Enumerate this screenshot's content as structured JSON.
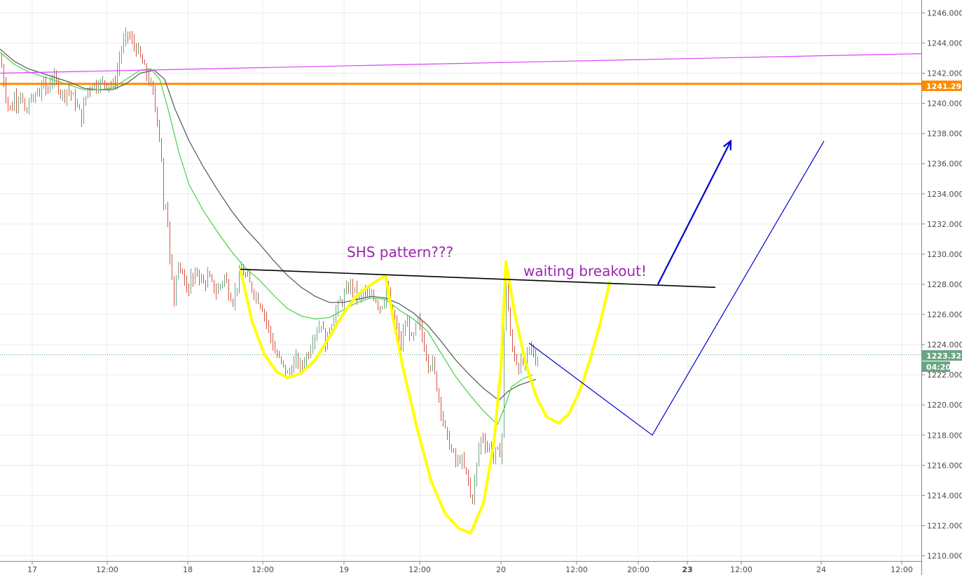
{
  "chart_data": {
    "type": "candlestick",
    "ylim": [
      1209.6,
      1247.0
    ],
    "y_ticks": [
      "1210.000",
      "1212.000",
      "1214.000",
      "1216.000",
      "1218.000",
      "1220.000",
      "1222.000",
      "1224.000",
      "1226.000",
      "1228.000",
      "1230.000",
      "1232.000",
      "1234.000",
      "1236.000",
      "1238.000",
      "1240.000",
      "1242.000",
      "1244.000",
      "1246.000"
    ],
    "x_ticks": [
      "17",
      "12:00",
      "18",
      "12:00",
      "19",
      "12:00",
      "20",
      "12:00",
      "20:00",
      "23",
      "12:00",
      "24",
      "12:00"
    ],
    "colors": {
      "up": "#6ba583",
      "down": "#d75442",
      "ema_fast": "#43d343",
      "ema_slow": "#555555",
      "resistance": "#ff8c00",
      "trendline": "#e040fb",
      "neckline": "#000000",
      "pattern": "#ffff00",
      "projection": "#0000cc",
      "annotation": "#9c27b0",
      "last_price": "#6ba583"
    },
    "levels": {
      "resistance_price": 1241.292,
      "resistance_label": "1241.292",
      "last_price": 1223.328,
      "last_price_label": "1223.328",
      "countdown_label": "04:20"
    },
    "annotations": [
      {
        "text": "SHS pattern???"
      },
      {
        "text": "waiting breakout!"
      }
    ],
    "price_path": [
      [
        0,
        1243.0
      ],
      [
        5,
        1241.5
      ],
      [
        10,
        1240.0
      ],
      [
        16,
        1239.5
      ],
      [
        20,
        1240.5
      ],
      [
        24,
        1240.0
      ],
      [
        28,
        1241.0
      ],
      [
        32,
        1240.0
      ],
      [
        36,
        1239.0
      ],
      [
        40,
        1239.8
      ],
      [
        44,
        1240.5
      ],
      [
        48,
        1240.0
      ],
      [
        52,
        1241.0
      ],
      [
        56,
        1240.5
      ],
      [
        60,
        1241.5
      ],
      [
        64,
        1241.0
      ],
      [
        68,
        1240.8
      ],
      [
        72,
        1241.8
      ],
      [
        78,
        1241.5
      ],
      [
        84,
        1241.0
      ],
      [
        90,
        1240.5
      ],
      [
        96,
        1241.0
      ],
      [
        102,
        1240.5
      ],
      [
        108,
        1240.0
      ],
      [
        112,
        1239.5
      ],
      [
        116,
        1239.0
      ],
      [
        120,
        1240.0
      ],
      [
        124,
        1241.0
      ],
      [
        128,
        1241.0
      ],
      [
        132,
        1241.5
      ],
      [
        136,
        1241.0
      ],
      [
        140,
        1241.5
      ],
      [
        144,
        1241.2
      ],
      [
        148,
        1241.5
      ],
      [
        152,
        1241.3
      ],
      [
        156,
        1241.5
      ],
      [
        160,
        1241.0
      ],
      [
        164,
        1241.5
      ],
      [
        168,
        1242.5
      ],
      [
        172,
        1243.5
      ],
      [
        176,
        1244.0
      ],
      [
        180,
        1244.5
      ],
      [
        184,
        1244.5
      ],
      [
        188,
        1244.0
      ],
      [
        192,
        1243.8
      ],
      [
        196,
        1243.5
      ],
      [
        200,
        1243.0
      ],
      [
        204,
        1242.5
      ],
      [
        208,
        1242.0
      ],
      [
        212,
        1241.5
      ],
      [
        216,
        1241.0
      ],
      [
        220,
        1240.0
      ],
      [
        224,
        1239.0
      ],
      [
        228,
        1237.5
      ],
      [
        232,
        1235.0
      ],
      [
        234,
        1231.0
      ],
      [
        236,
        1233.0
      ],
      [
        238,
        1231.5
      ],
      [
        240,
        1232.5
      ],
      [
        242,
        1230.0
      ],
      [
        244,
        1229.5
      ],
      [
        246,
        1228.0
      ],
      [
        248,
        1227.0
      ],
      [
        252,
        1229.0
      ],
      [
        256,
        1228.5
      ],
      [
        260,
        1229.0
      ],
      [
        264,
        1228.0
      ],
      [
        268,
        1227.5
      ],
      [
        272,
        1228.5
      ],
      [
        276,
        1228.0
      ],
      [
        280,
        1229.0
      ],
      [
        285,
        1228.5
      ],
      [
        290,
        1228.0
      ],
      [
        296,
        1228.5
      ],
      [
        302,
        1228.0
      ],
      [
        308,
        1227.5
      ],
      [
        314,
        1228.0
      ],
      [
        320,
        1228.5
      ],
      [
        326,
        1227.5
      ],
      [
        332,
        1227.0
      ],
      [
        338,
        1228.0
      ],
      [
        344,
        1229.0
      ],
      [
        350,
        1228.5
      ],
      [
        356,
        1228.0
      ],
      [
        362,
        1227.5
      ],
      [
        368,
        1227.0
      ],
      [
        374,
        1226.5
      ],
      [
        380,
        1225.5
      ],
      [
        386,
        1224.5
      ],
      [
        392,
        1223.5
      ],
      [
        398,
        1223.0
      ],
      [
        404,
        1222.5
      ],
      [
        410,
        1222.0
      ],
      [
        416,
        1222.5
      ],
      [
        422,
        1223.0
      ],
      [
        428,
        1222.5
      ],
      [
        434,
        1223.0
      ],
      [
        440,
        1223.5
      ],
      [
        446,
        1224.5
      ],
      [
        452,
        1225.0
      ],
      [
        458,
        1225.5
      ],
      [
        464,
        1224.0
      ],
      [
        470,
        1225.0
      ],
      [
        476,
        1226.0
      ],
      [
        482,
        1226.5
      ],
      [
        488,
        1227.0
      ],
      [
        494,
        1227.5
      ],
      [
        500,
        1228.0
      ],
      [
        506,
        1227.5
      ],
      [
        512,
        1227.0
      ],
      [
        518,
        1227.5
      ],
      [
        524,
        1227.0
      ],
      [
        530,
        1227.5
      ],
      [
        536,
        1227.0
      ],
      [
        542,
        1226.5
      ],
      [
        548,
        1227.0
      ],
      [
        552,
        1228.0
      ],
      [
        556,
        1226.5
      ],
      [
        560,
        1226.0
      ],
      [
        564,
        1225.5
      ],
      [
        568,
        1224.5
      ],
      [
        572,
        1224.0
      ],
      [
        576,
        1225.0
      ],
      [
        580,
        1225.5
      ],
      [
        584,
        1225.0
      ],
      [
        588,
        1224.0
      ],
      [
        592,
        1225.0
      ],
      [
        596,
        1225.5
      ],
      [
        600,
        1225.0
      ],
      [
        604,
        1224.0
      ],
      [
        608,
        1223.5
      ],
      [
        612,
        1222.5
      ],
      [
        616,
        1223.0
      ],
      [
        620,
        1222.0
      ],
      [
        624,
        1221.0
      ],
      [
        628,
        1220.0
      ],
      [
        632,
        1219.0
      ],
      [
        636,
        1218.0
      ],
      [
        640,
        1217.5
      ],
      [
        644,
        1217.0
      ],
      [
        648,
        1216.5
      ],
      [
        652,
        1216.0
      ],
      [
        656,
        1216.5
      ],
      [
        660,
        1216.0
      ],
      [
        664,
        1215.5
      ],
      [
        668,
        1215.0
      ],
      [
        672,
        1213.5
      ],
      [
        676,
        1214.5
      ],
      [
        680,
        1216.0
      ],
      [
        684,
        1217.5
      ],
      [
        688,
        1218.0
      ],
      [
        692,
        1217.5
      ],
      [
        696,
        1217.0
      ],
      [
        700,
        1217.5
      ],
      [
        704,
        1216.5
      ],
      [
        708,
        1217.0
      ],
      [
        712,
        1216.5
      ],
      [
        716,
        1218.0
      ],
      [
        718,
        1223.0
      ],
      [
        720,
        1227.0
      ],
      [
        722,
        1228.5
      ],
      [
        724,
        1227.0
      ],
      [
        726,
        1225.5
      ],
      [
        728,
        1224.5
      ],
      [
        732,
        1223.5
      ],
      [
        736,
        1223.0
      ],
      [
        740,
        1222.5
      ],
      [
        744,
        1223.0
      ],
      [
        748,
        1222.5
      ],
      [
        752,
        1223.5
      ],
      [
        756,
        1223.8
      ],
      [
        760,
        1223.5
      ],
      [
        764,
        1223.0
      ],
      [
        768,
        1223.3
      ]
    ],
    "ema_fast_path": [
      [
        0,
        1243.4
      ],
      [
        20,
        1242.6
      ],
      [
        40,
        1242.1
      ],
      [
        60,
        1241.8
      ],
      [
        80,
        1241.5
      ],
      [
        100,
        1241.2
      ],
      [
        120,
        1240.9
      ],
      [
        140,
        1240.9
      ],
      [
        160,
        1241.0
      ],
      [
        180,
        1241.6
      ],
      [
        200,
        1242.2
      ],
      [
        215,
        1242.3
      ],
      [
        228,
        1241.6
      ],
      [
        240,
        1239.6
      ],
      [
        255,
        1236.8
      ],
      [
        270,
        1234.6
      ],
      [
        290,
        1232.9
      ],
      [
        310,
        1231.5
      ],
      [
        330,
        1230.2
      ],
      [
        350,
        1229.1
      ],
      [
        370,
        1228.3
      ],
      [
        390,
        1227.3
      ],
      [
        410,
        1226.4
      ],
      [
        430,
        1225.9
      ],
      [
        450,
        1225.7
      ],
      [
        470,
        1225.8
      ],
      [
        490,
        1226.3
      ],
      [
        510,
        1226.8
      ],
      [
        530,
        1227.1
      ],
      [
        550,
        1227.0
      ],
      [
        570,
        1226.3
      ],
      [
        590,
        1225.7
      ],
      [
        610,
        1224.9
      ],
      [
        630,
        1223.4
      ],
      [
        650,
        1221.9
      ],
      [
        670,
        1220.7
      ],
      [
        690,
        1219.6
      ],
      [
        710,
        1218.7
      ],
      [
        720,
        1219.8
      ],
      [
        730,
        1221.2
      ],
      [
        745,
        1221.7
      ],
      [
        760,
        1222.0
      ]
    ],
    "ema_slow_path": [
      [
        0,
        1243.6
      ],
      [
        20,
        1242.8
      ],
      [
        40,
        1242.3
      ],
      [
        60,
        1242.0
      ],
      [
        80,
        1241.7
      ],
      [
        100,
        1241.4
      ],
      [
        120,
        1241.0
      ],
      [
        140,
        1240.9
      ],
      [
        160,
        1240.9
      ],
      [
        180,
        1241.3
      ],
      [
        200,
        1242.0
      ],
      [
        220,
        1242.2
      ],
      [
        235,
        1241.6
      ],
      [
        250,
        1239.6
      ],
      [
        270,
        1237.5
      ],
      [
        290,
        1235.8
      ],
      [
        310,
        1234.3
      ],
      [
        330,
        1232.9
      ],
      [
        350,
        1231.7
      ],
      [
        370,
        1230.7
      ],
      [
        390,
        1229.6
      ],
      [
        410,
        1228.6
      ],
      [
        430,
        1227.8
      ],
      [
        450,
        1227.2
      ],
      [
        470,
        1226.8
      ],
      [
        490,
        1226.8
      ],
      [
        510,
        1227.0
      ],
      [
        530,
        1227.2
      ],
      [
        550,
        1227.1
      ],
      [
        570,
        1226.7
      ],
      [
        590,
        1226.1
      ],
      [
        610,
        1225.3
      ],
      [
        630,
        1224.2
      ],
      [
        650,
        1223.0
      ],
      [
        670,
        1222.0
      ],
      [
        690,
        1221.1
      ],
      [
        712,
        1220.3
      ],
      [
        725,
        1220.9
      ],
      [
        740,
        1221.3
      ],
      [
        765,
        1221.7
      ]
    ],
    "drawings": {
      "magenta_trendline": [
        [
          0,
          1242.0
        ],
        [
          1315,
          1243.3
        ]
      ],
      "neckline": [
        [
          343,
          1229.0
        ],
        [
          1021,
          1227.8
        ]
      ],
      "shs_curve_1": [
        [
          343,
          1229.0
        ],
        [
          360,
          1225.5
        ],
        [
          378,
          1223.3
        ],
        [
          395,
          1222.2
        ],
        [
          410,
          1221.8
        ],
        [
          430,
          1222.1
        ],
        [
          450,
          1223.0
        ],
        [
          470,
          1224.5
        ],
        [
          492,
          1226.2
        ],
        [
          510,
          1227.3
        ],
        [
          530,
          1228.0
        ],
        [
          550,
          1228.6
        ]
      ],
      "shs_curve_2": [
        [
          550,
          1228.6
        ],
        [
          560,
          1226.0
        ],
        [
          575,
          1222.5
        ],
        [
          595,
          1218.5
        ],
        [
          615,
          1215.0
        ],
        [
          635,
          1212.8
        ],
        [
          655,
          1211.8
        ],
        [
          672,
          1211.5
        ],
        [
          690,
          1213.5
        ],
        [
          705,
          1217.5
        ],
        [
          715,
          1222.5
        ],
        [
          722,
          1229.5
        ]
      ],
      "shs_curve_3": [
        [
          722,
          1229.5
        ],
        [
          735,
          1226.0
        ],
        [
          750,
          1222.8
        ],
        [
          765,
          1220.6
        ],
        [
          780,
          1219.2
        ],
        [
          797,
          1218.8
        ],
        [
          812,
          1219.4
        ],
        [
          828,
          1221.0
        ],
        [
          842,
          1223.0
        ],
        [
          856,
          1225.3
        ],
        [
          870,
          1228.1
        ]
      ],
      "projection_path": [
        [
          755,
          1224.1
        ],
        [
          931,
          1218.0
        ],
        [
          1176,
          1237.5
        ]
      ],
      "breakout_arrow": [
        [
          939,
          1228.0
        ],
        [
          1043,
          1237.5
        ]
      ]
    }
  }
}
